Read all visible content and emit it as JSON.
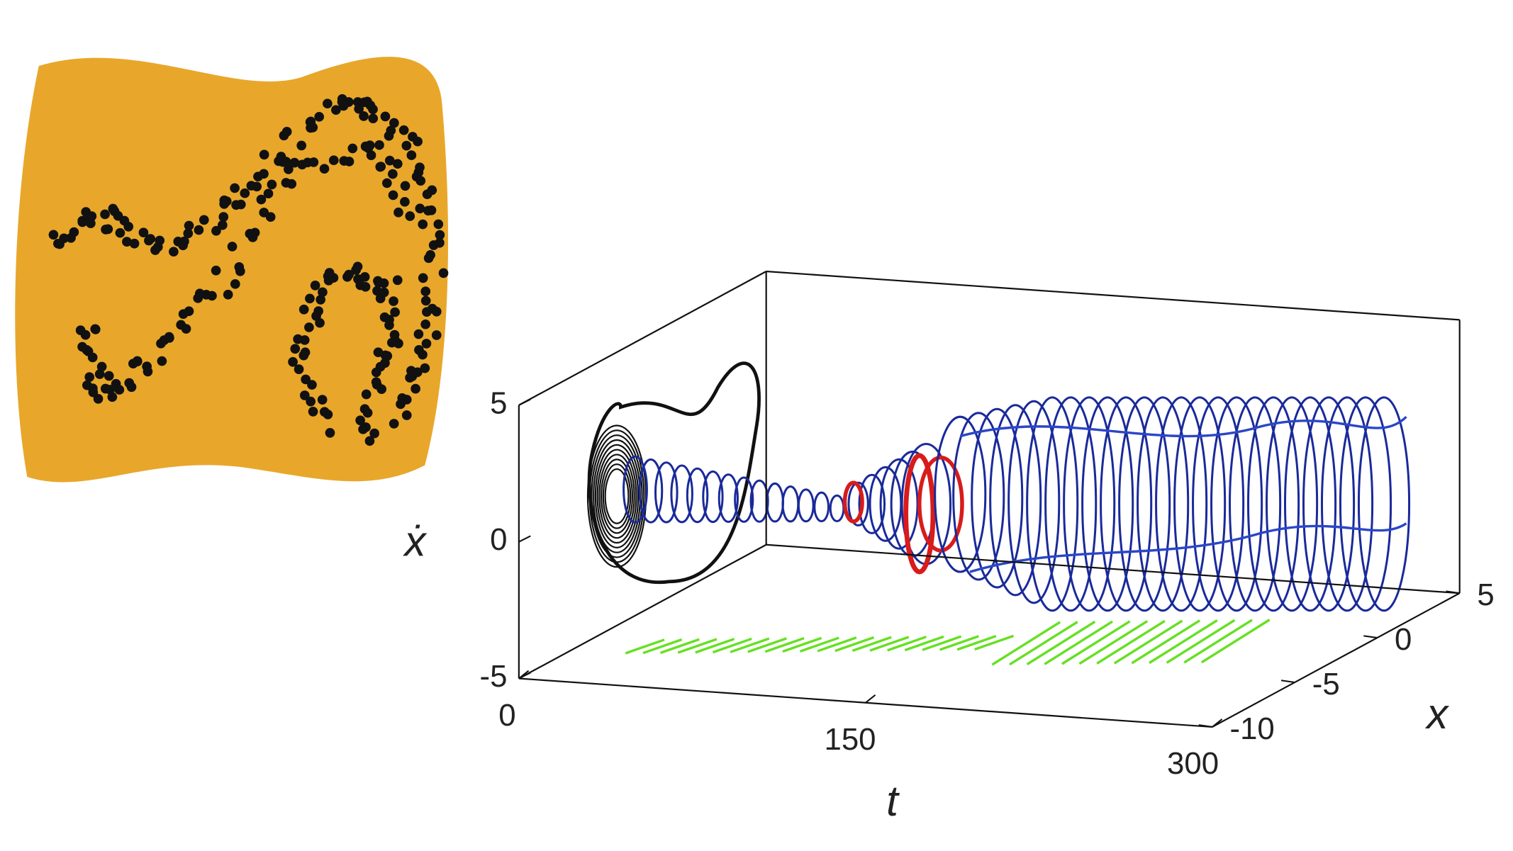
{
  "chart_data": {
    "type": "line3d",
    "xlabel": "t",
    "zlabel": "x",
    "ylabel": "ẋ",
    "xlim": [
      0,
      300
    ],
    "xticks": [
      0,
      150,
      300
    ],
    "zlim": [
      -10,
      5
    ],
    "zticks": [
      -10,
      -5,
      0,
      5
    ],
    "ylim": [
      -5,
      5
    ],
    "yticks": [
      -5,
      0,
      5
    ]
  }
}
